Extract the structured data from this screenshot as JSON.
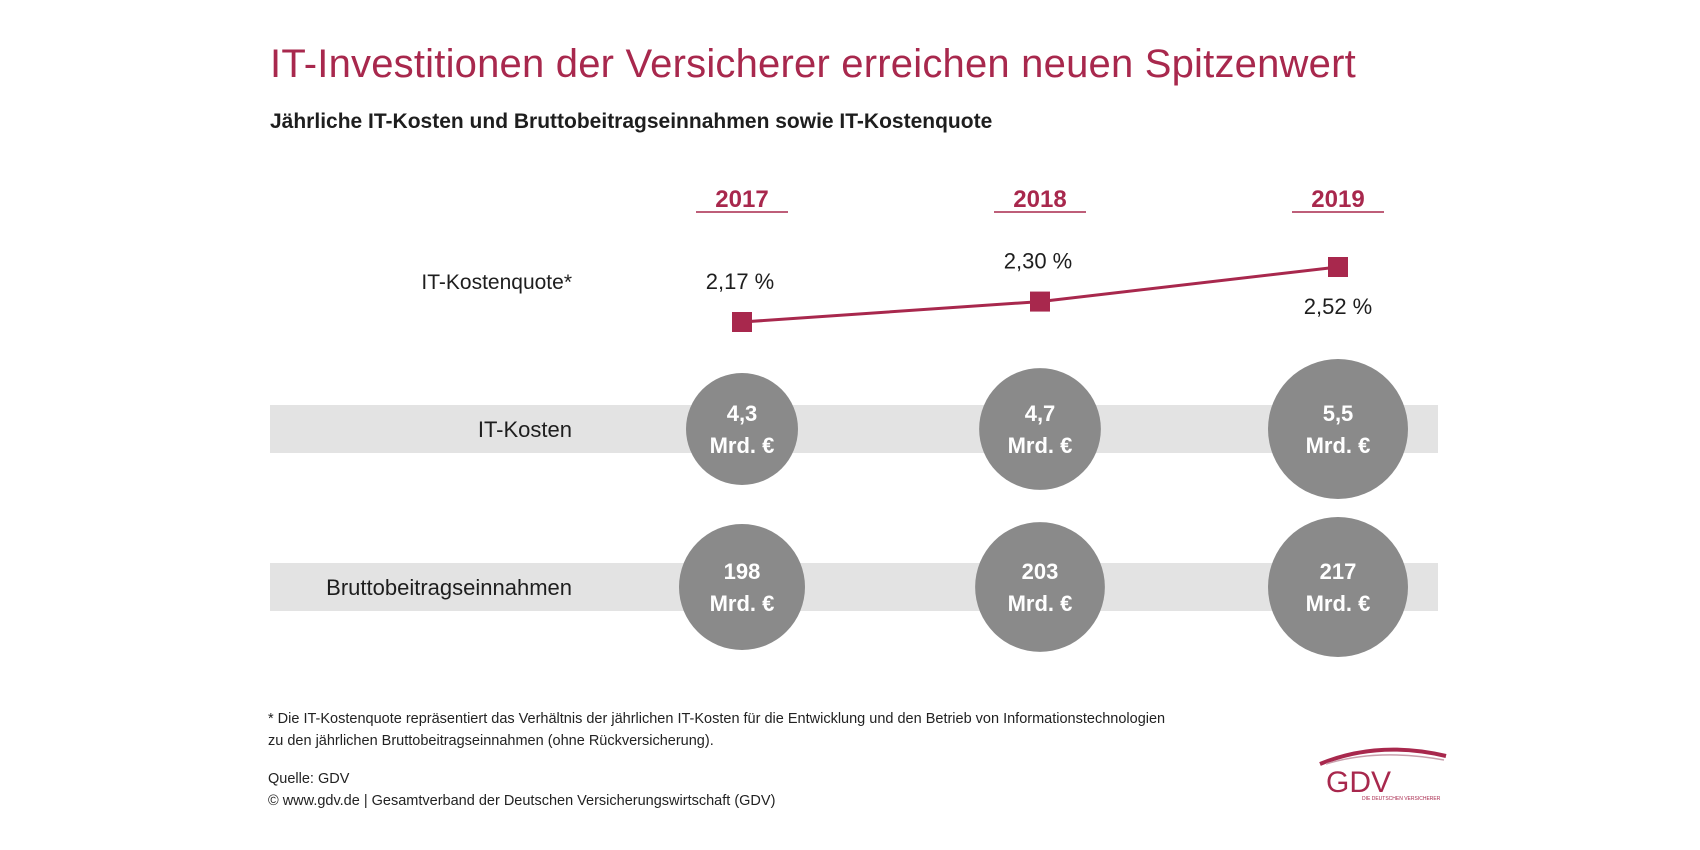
{
  "title": "IT-Investitionen der Versicherer erreichen neuen Spitzenwert",
  "subtitle": "Jährliche IT-Kosten und Bruttobeitragseinnahmen sowie IT-Kostenquote",
  "colors": {
    "accent": "#a8284d",
    "circle": "#8a8a8a",
    "band": "#e3e3e3",
    "text": "#1e1e1e"
  },
  "chart_data": {
    "type": "table",
    "categories": [
      "2017",
      "2018",
      "2019"
    ],
    "quote": {
      "label": "IT-Kostenquote*",
      "values": [
        2.17,
        2.3,
        2.52
      ],
      "value_labels": [
        "2,17 %",
        "2,30 %",
        "2,52 %"
      ],
      "unit": "%"
    },
    "series": [
      {
        "name": "IT-Kosten",
        "values": [
          4.3,
          4.7,
          5.5
        ],
        "value_labels": [
          "4,3",
          "4,7",
          "5,5"
        ],
        "unit": "Mrd. €"
      },
      {
        "name": "Bruttobeitragseinnahmen",
        "values": [
          198,
          203,
          217
        ],
        "value_labels": [
          "198",
          "203",
          "217"
        ],
        "unit": "Mrd. €"
      }
    ]
  },
  "footnote": "* Die IT-Kostenquote repräsentiert das Verhältnis der jährlichen IT-Kosten für die Entwicklung und den Betrieb von Informationstechnologien zu den jährlichen Bruttobeitragseinnahmen (ohne Rückversicherung).",
  "source_label": "Quelle: GDV",
  "copyright": "© www.gdv.de | Gesamtverband der Deutschen Versicherungswirtschaft (GDV)",
  "logo": {
    "text": "GDV",
    "tagline": "DIE DEUTSCHEN VERSICHERER"
  }
}
